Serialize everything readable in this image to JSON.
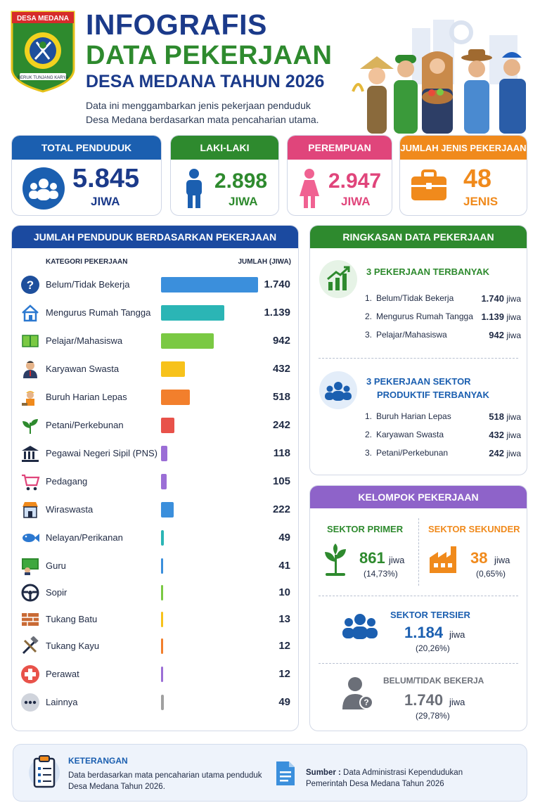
{
  "header": {
    "logo_text": "DESA MEDANA",
    "logo_motto": "BERUK TUNJANG KARYA",
    "title_line1": "INFOGRAFIS",
    "title_line2": "DATA PEKERJAAN",
    "title_line3": "DESA MEDANA TAHUN 2026",
    "subtitle_line1": "Data ini menggambarkan jenis pekerjaan penduduk",
    "subtitle_line2": "Desa Medana berdasarkan mata pencaharian utama."
  },
  "stats": {
    "total": {
      "label": "TOTAL PENDUDUK",
      "value": "5.845",
      "unit": "JIWA"
    },
    "male": {
      "label": "LAKI-LAKI",
      "value": "2.898",
      "unit": "JIWA"
    },
    "female": {
      "label": "PEREMPUAN",
      "value": "2.947",
      "unit": "JIWA"
    },
    "jobs": {
      "label": "JUMLAH JENIS PEKERJAAN",
      "value": "48",
      "unit": "JENIS"
    }
  },
  "chart_panel": {
    "title": "JUMLAH PENDUDUK BERDASARKAN PEKERJAAN",
    "col_category": "KATEGORI PEKERJAAN",
    "col_count": "JUMLAH (JIWA)"
  },
  "chart_data": {
    "type": "bar",
    "title": "JUMLAH PENDUDUK BERDASARKAN PEKERJAAN",
    "xlabel": "KATEGORI PEKERJAAN",
    "ylabel": "JUMLAH (JIWA)",
    "orientation": "horizontal",
    "ylim": [
      0,
      1740
    ],
    "categories": [
      "Belum/Tidak Bekerja",
      "Mengurus Rumah Tangga",
      "Pelajar/Mahasiswa",
      "Karyawan Swasta",
      "Buruh Harian Lepas",
      "Petani/Perkebunan",
      "Pegawai Negeri Sipil (PNS)",
      "Pedagang",
      "Wiraswasta",
      "Nelayan/Perikanan",
      "Guru",
      "Sopir",
      "Tukang Batu",
      "Tukang Kayu",
      "Perawat",
      "Lainnya"
    ],
    "values": [
      1740,
      1139,
      942,
      432,
      518,
      242,
      118,
      105,
      222,
      49,
      41,
      10,
      13,
      12,
      12,
      49
    ],
    "value_labels": [
      "1.740",
      "1.139",
      "942",
      "432",
      "518",
      "242",
      "118",
      "105",
      "222",
      "49",
      "41",
      "10",
      "13",
      "12",
      "12",
      "49"
    ],
    "colors": [
      "#3b8fdc",
      "#2bb5b5",
      "#7ac943",
      "#f7c21b",
      "#f27f2c",
      "#e8524a",
      "#9b6ed6",
      "#9b6ed6",
      "#3b8fdc",
      "#2bb5b5",
      "#3b8fdc",
      "#7ac943",
      "#f7c21b",
      "#f27f2c",
      "#9b6ed6",
      "#a0a0a0"
    ],
    "icons": [
      "question-icon",
      "house-icon",
      "book-icon",
      "office-worker-icon",
      "laborer-icon",
      "plant-icon",
      "government-building-icon",
      "cart-icon",
      "shop-icon",
      "fish-icon",
      "teacher-icon",
      "steering-wheel-icon",
      "brick-icon",
      "tools-icon",
      "medical-cross-icon",
      "more-icon"
    ]
  },
  "summary": {
    "title": "RINGKASAN DATA PEKERJAAN",
    "top_title": "3 PEKERJAAN TERBANYAK",
    "top_items": [
      {
        "no": "1.",
        "name": "Belum/Tidak Bekerja",
        "value": "1.740",
        "unit": "jiwa"
      },
      {
        "no": "2.",
        "name": "Mengurus Rumah Tangga",
        "value": "1.139",
        "unit": "jiwa"
      },
      {
        "no": "3.",
        "name": "Pelajar/Mahasiswa",
        "value": "942",
        "unit": "jiwa"
      }
    ],
    "prod_title_line1": "3 PEKERJAAN SEKTOR",
    "prod_title_line2": "PRODUKTIF TERBANYAK",
    "prod_items": [
      {
        "no": "1.",
        "name": "Buruh Harian Lepas",
        "value": "518",
        "unit": "jiwa"
      },
      {
        "no": "2.",
        "name": "Karyawan Swasta",
        "value": "432",
        "unit": "jiwa"
      },
      {
        "no": "3.",
        "name": "Petani/Perkebunan",
        "value": "242",
        "unit": "jiwa"
      }
    ]
  },
  "groups": {
    "title": "KELOMPOK PEKERJAAN",
    "primer": {
      "label": "SEKTOR PRIMER",
      "value": "861",
      "unit": "jiwa",
      "pct": "(14,73%)"
    },
    "sekunder": {
      "label": "SEKTOR SEKUNDER",
      "value": "38",
      "unit": "jiwa",
      "pct": "(0,65%)"
    },
    "tersier": {
      "label": "SEKTOR TERSIER",
      "value": "1.184",
      "unit": "jiwa",
      "pct": "(20,26%)"
    },
    "belum": {
      "label": "BELUM/TIDAK BEKERJA",
      "value": "1.740",
      "unit": "jiwa",
      "pct": "(29,78%)"
    }
  },
  "footer": {
    "note_title": "KETERANGAN",
    "note_line1": "Data berdasarkan mata pencaharian utama penduduk",
    "note_line2": "Desa Medana Tahun 2026.",
    "source_label": "Sumber :",
    "source_line1": "Data Administrasi Kependudukan",
    "source_line2": "Pemerintah Desa Medana Tahun 2026"
  },
  "colors": {
    "blue": "#1b5fb0",
    "green": "#2e8a2e",
    "pink": "#e0457b",
    "orange": "#f08a1c",
    "purple": "#8e63c9",
    "navy": "#1b3a8a"
  }
}
